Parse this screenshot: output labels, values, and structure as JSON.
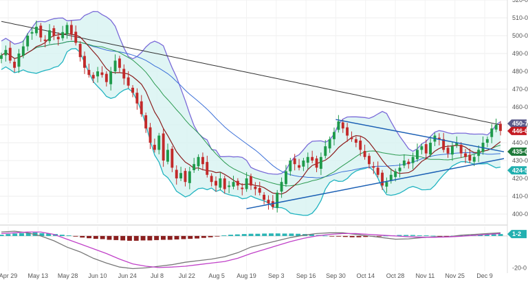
{
  "chart_data": [
    {
      "type": "candlestick",
      "panel": "price",
      "title": "",
      "ylim": [
        395,
        520
      ],
      "y_ticks": [
        "520-0",
        "510-0",
        "500-0",
        "490-0",
        "480-0",
        "470-0",
        "460-0",
        "450-0",
        "440-0",
        "430-0",
        "420-0",
        "410-0",
        "400-0"
      ],
      "y_tick_values": [
        520,
        510,
        500,
        490,
        480,
        470,
        460,
        450,
        440,
        430,
        420,
        410,
        400
      ],
      "x_labels": [
        "Apr 29",
        "May 13",
        "May 28",
        "Jun 10",
        "Jun 24",
        "Jul 8",
        "Jul 22",
        "Aug 5",
        "Aug 19",
        "Sep 3",
        "Sep 16",
        "Sep 30",
        "Oct 14",
        "Oct 28",
        "Nov 11",
        "Nov 25",
        "Dec 9"
      ],
      "price_tags": [
        {
          "text": "450-7",
          "value": 450.7,
          "color": "#5a5a8a"
        },
        {
          "text": "446-6",
          "value": 446.6,
          "color": "#c41a22"
        },
        {
          "text": "435-0",
          "value": 435.0,
          "color": "#1f7a3a"
        },
        {
          "text": "424-5",
          "value": 424.5,
          "color": "#22b0b0"
        }
      ],
      "closes": [
        489,
        492,
        486,
        482,
        490,
        494,
        500,
        502,
        505,
        499,
        497,
        503,
        500,
        498,
        502,
        506,
        501,
        496,
        488,
        482,
        478,
        476,
        480,
        478,
        474,
        480,
        486,
        482,
        476,
        472,
        468,
        462,
        456,
        448,
        440,
        436,
        444,
        430,
        436,
        426,
        420,
        423,
        418,
        424,
        428,
        432,
        428,
        422,
        418,
        416,
        420,
        414,
        416,
        418,
        416,
        414,
        420,
        416,
        414,
        412,
        408,
        406,
        404,
        412,
        418,
        424,
        430,
        428,
        426,
        430,
        432,
        430,
        426,
        432,
        438,
        442,
        446,
        452,
        448,
        444,
        442,
        440,
        436,
        432,
        428,
        426,
        422,
        416,
        418,
        422,
        424,
        426,
        430,
        428,
        432,
        436,
        438,
        434,
        440,
        444,
        442,
        436,
        434,
        438,
        440,
        434,
        432,
        430,
        432,
        436,
        440,
        442,
        448,
        450,
        446.6
      ],
      "indicators": [
        {
          "name": "SMA-200",
          "color": "#333333"
        },
        {
          "name": "SMA-100",
          "color": "#3a6fd8"
        },
        {
          "name": "SMA-50",
          "color": "#2a9a50"
        },
        {
          "name": "SMA-20",
          "color": "#8a1c1c"
        },
        {
          "name": "Bollinger Bands",
          "color": "#7a6ad8",
          "fill": "#d7f3f1"
        },
        {
          "name": "Channel",
          "color": "#1a5fb4"
        }
      ],
      "channel": {
        "upper": [
          {
            "x": "Sep 30",
            "y": 453
          },
          {
            "x": "Dec 9",
            "y": 437
          }
        ],
        "lower": [
          {
            "x": "Aug 19",
            "y": 403
          },
          {
            "x": "Dec 9",
            "y": 429
          }
        ]
      }
    },
    {
      "type": "histogram",
      "panel": "oscillator",
      "ylim": [
        -22,
        6
      ],
      "y_ticks": [
        "1-2",
        "-20-0"
      ],
      "y_tick_values": [
        1.2,
        -20
      ],
      "price_tags": [
        {
          "text": "1-2",
          "value": 1.2,
          "color": "#22b0b0"
        }
      ],
      "histogram": [
        0.8,
        1.2,
        1.5,
        1.8,
        2.0,
        2.2,
        1.8,
        1.5,
        1.2,
        0.8,
        0.4,
        -0.4,
        -1.0,
        -1.4,
        -1.8,
        -2.0,
        -2.4,
        -2.6,
        -2.8,
        -3.0,
        -3.0,
        -2.8,
        -2.8,
        -2.6,
        -2.4,
        -2.4,
        -2.2,
        -2.0,
        -1.8,
        -1.6,
        -1.2,
        -0.8,
        -0.2,
        0.4,
        0.8,
        1.0,
        1.2,
        1.4,
        1.4,
        1.5,
        1.6,
        1.6,
        1.5,
        1.5,
        1.4,
        1.2,
        1.0,
        0.6,
        0.2,
        -0.2,
        -0.4,
        -0.6,
        -0.8,
        -0.8,
        -0.6,
        -0.4,
        -0.2,
        0.2,
        0.4,
        0.6,
        0.6,
        0.6,
        0.4,
        0.4,
        0.2,
        -0.2,
        -0.2,
        0.2,
        0.4,
        0.6,
        0.6,
        0.8,
        1.0,
        1.0,
        1.2
      ],
      "macd_line": [
        2.5,
        3.0,
        2.0,
        0.0,
        -3.0,
        -7.0,
        -10.0,
        -14.0,
        -17.0,
        -19.5,
        -20.5,
        -20.0,
        -19.0,
        -18.0,
        -16.5,
        -15.5,
        -14.5,
        -13.0,
        -10.5,
        -7.0,
        -5.0,
        -3.0,
        -1.0,
        0.5,
        1.5,
        2.0,
        2.0,
        1.0,
        0.0,
        -1.0,
        -2.0,
        -1.8,
        -1.0,
        -0.5,
        -0.5,
        0.5,
        1.0,
        1.5,
        2.0
      ],
      "signal_line": [
        1.5,
        2.0,
        2.5,
        2.5,
        1.0,
        -2.0,
        -5.0,
        -8.0,
        -11.0,
        -14.5,
        -17.5,
        -19.0,
        -19.8,
        -19.5,
        -19.0,
        -18.0,
        -17.0,
        -16.0,
        -14.0,
        -11.0,
        -8.5,
        -6.0,
        -3.5,
        -1.5,
        0.0,
        1.0,
        1.5,
        1.5,
        1.0,
        0.5,
        0.0,
        -0.5,
        -0.8,
        -0.8,
        -0.6,
        -0.2,
        0.4,
        1.0,
        1.5
      ]
    }
  ]
}
